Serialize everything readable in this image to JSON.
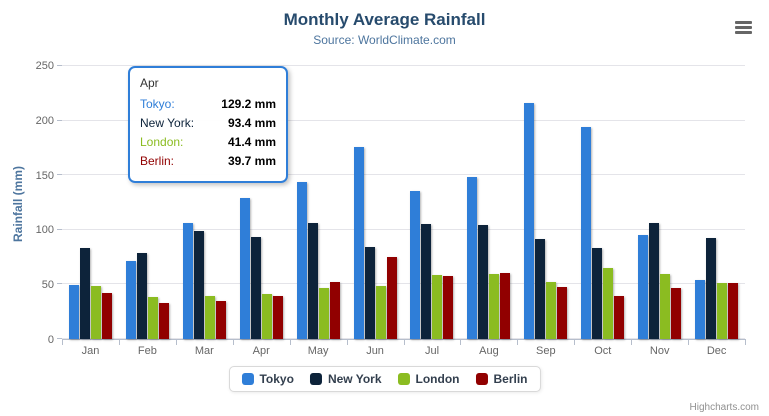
{
  "title": "Monthly Average Rainfall",
  "subtitle": "Source: WorldClimate.com",
  "y_axis_title": "Rainfall (mm)",
  "credits": "Highcharts.com",
  "tooltip": {
    "header": "Apr",
    "border_color": "#2f7ed8",
    "rows": [
      {
        "name": "Tokyo",
        "label": "Tokyo:",
        "value": "129.2 mm",
        "color": "#2f7ed8"
      },
      {
        "name": "New York",
        "label": "New York:",
        "value": "93.4 mm",
        "color": "#0d233a"
      },
      {
        "name": "London",
        "label": "London:",
        "value": "41.4 mm",
        "color": "#8bbc21"
      },
      {
        "name": "Berlin",
        "label": "Berlin:",
        "value": "39.7 mm",
        "color": "#910000"
      }
    ]
  },
  "chart_data": {
    "type": "bar",
    "title": "Monthly Average Rainfall",
    "subtitle": "Source: WorldClimate.com",
    "xlabel": "",
    "ylabel": "Rainfall (mm)",
    "ylim": [
      0,
      250
    ],
    "yticks": [
      0,
      50,
      100,
      150,
      200,
      250
    ],
    "grid": true,
    "legend_position": "bottom",
    "categories": [
      "Jan",
      "Feb",
      "Mar",
      "Apr",
      "May",
      "Jun",
      "Jul",
      "Aug",
      "Sep",
      "Oct",
      "Nov",
      "Dec"
    ],
    "series": [
      {
        "name": "Tokyo",
        "color": "#2f7ed8",
        "values": [
          49.9,
          71.5,
          106.4,
          129.2,
          144.0,
          176.0,
          135.6,
          148.5,
          216.4,
          194.1,
          95.6,
          54.4
        ]
      },
      {
        "name": "New York",
        "color": "#0d233a",
        "values": [
          83.6,
          78.8,
          98.5,
          93.4,
          106.0,
          84.5,
          105.0,
          104.3,
          91.2,
          83.5,
          106.6,
          92.3
        ]
      },
      {
        "name": "London",
        "color": "#8bbc21",
        "values": [
          48.9,
          38.8,
          39.3,
          41.4,
          47.0,
          48.3,
          59.0,
          59.6,
          52.4,
          65.2,
          59.3,
          51.2
        ]
      },
      {
        "name": "Berlin",
        "color": "#910000",
        "values": [
          42.4,
          33.2,
          34.5,
          39.7,
          52.6,
          75.5,
          57.4,
          60.4,
          47.6,
          39.1,
          46.8,
          51.1
        ]
      }
    ]
  }
}
